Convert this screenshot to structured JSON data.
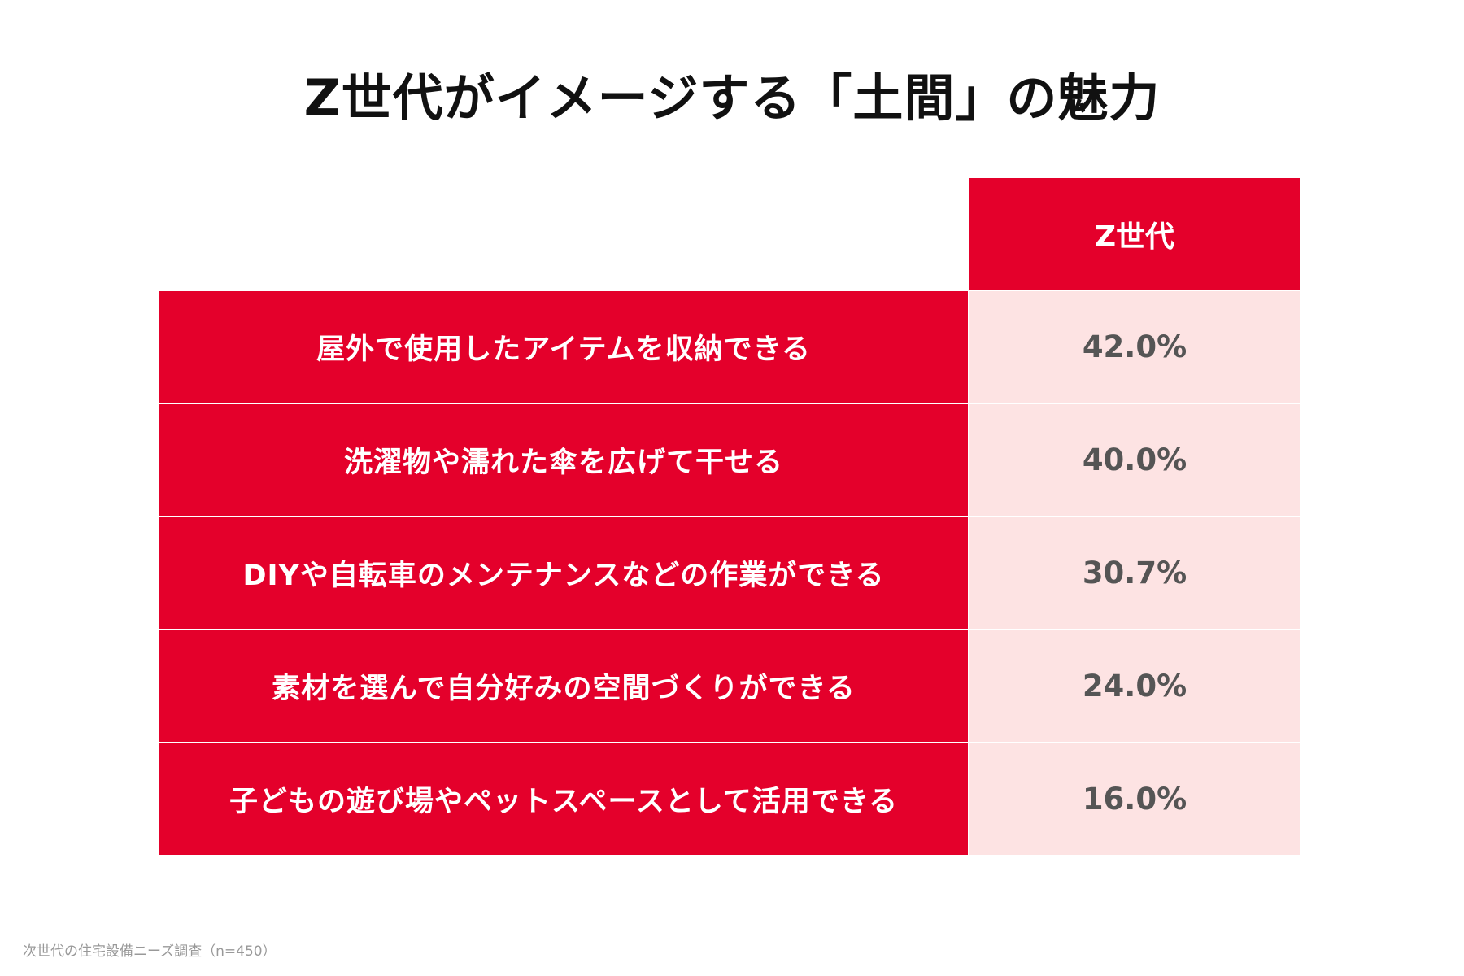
{
  "chart_data": {
    "type": "table",
    "title": "Z世代がイメージする「土間」の魅力",
    "column_header": "Z世代",
    "rows": [
      {
        "label": "屋外で使用したアイテムを収納できる",
        "value": 42.0,
        "display": "42.0%"
      },
      {
        "label": "洗濯物や濡れた傘を広げて干せる",
        "value": 40.0,
        "display": "40.0%"
      },
      {
        "label": "DIYや自転車のメンテナンスなどの作業ができる",
        "value": 30.7,
        "display": "30.7%"
      },
      {
        "label": "素材を選んで自分好みの空間づくりができる",
        "value": 24.0,
        "display": "24.0%"
      },
      {
        "label": "子どもの遊び場やペットスペースとして活用できる",
        "value": 16.0,
        "display": "16.0%"
      }
    ],
    "source": "次世代の住宅設備ニーズ調査（n=450）"
  },
  "colors": {
    "header_red": "#e4002b",
    "value_pink": "#fde3e3"
  }
}
